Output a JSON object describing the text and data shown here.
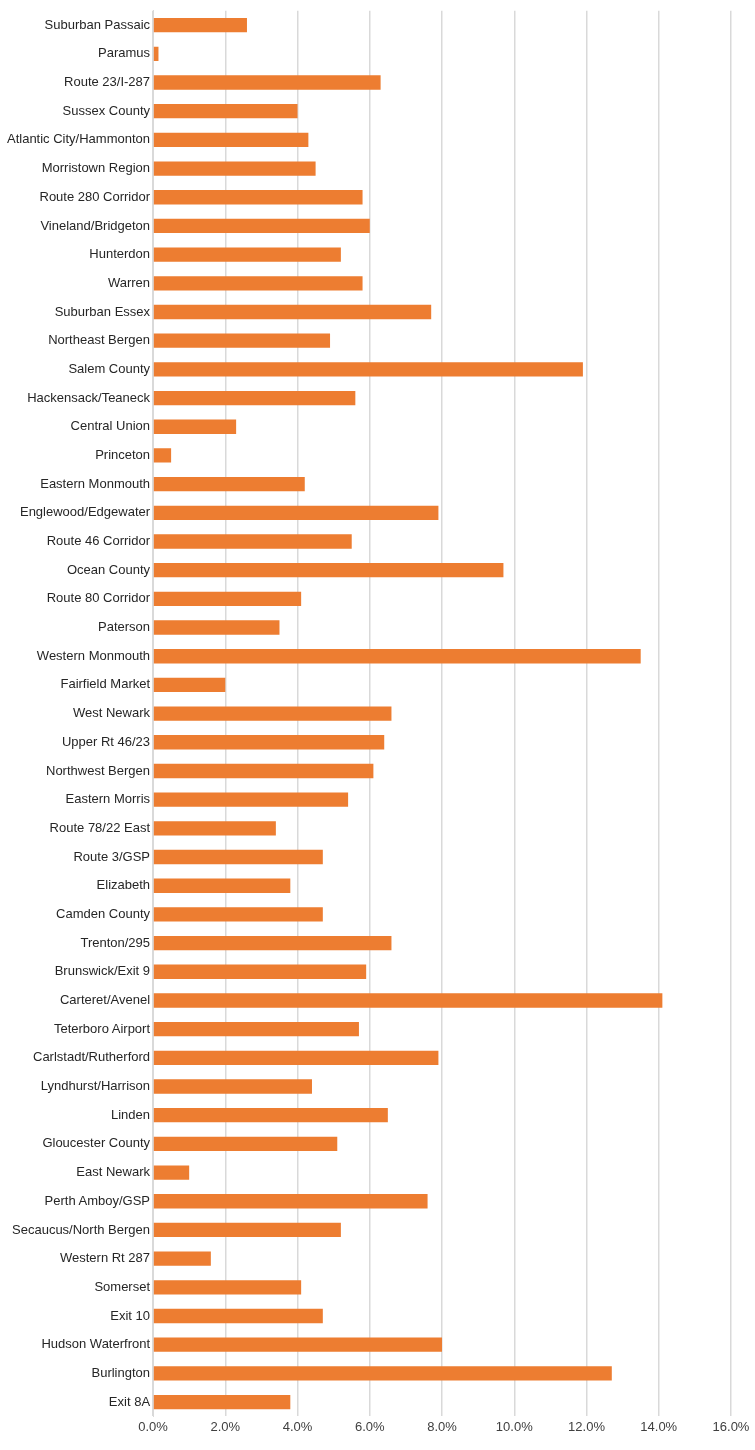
{
  "chart_data": {
    "type": "bar",
    "orientation": "horizontal",
    "categories": [
      "Suburban Passaic",
      "Paramus",
      "Route 23/I-287",
      "Sussex County",
      "Atlantic City/Hammonton",
      "Morristown Region",
      "Route 280 Corridor",
      "Vineland/Bridgeton",
      "Hunterdon",
      "Warren",
      "Suburban Essex",
      "Northeast Bergen",
      "Salem County",
      "Hackensack/Teaneck",
      "Central Union",
      "Princeton",
      "Eastern Monmouth",
      "Englewood/Edgewater",
      "Route 46 Corridor",
      "Ocean County",
      "Route 80 Corridor",
      "Paterson",
      "Western Monmouth",
      "Fairfield Market",
      "West Newark",
      "Upper Rt 46/23",
      "Northwest Bergen",
      "Eastern Morris",
      "Route 78/22 East",
      "Route 3/GSP",
      "Elizabeth",
      "Camden County",
      "Trenton/295",
      "Brunswick/Exit 9",
      "Carteret/Avenel",
      "Teterboro Airport",
      "Carlstadt/Rutherford",
      "Lyndhurst/Harrison",
      "Linden",
      "Gloucester County",
      "East Newark",
      "Perth Amboy/GSP",
      "Secaucus/North Bergen",
      "Western Rt 287",
      "Somerset",
      "Exit 10",
      "Hudson Waterfront",
      "Burlington",
      "Exit 8A"
    ],
    "values": [
      2.6,
      0.15,
      6.3,
      4.0,
      4.3,
      4.5,
      5.8,
      6.0,
      5.2,
      5.8,
      7.7,
      4.9,
      11.9,
      5.6,
      2.3,
      0.5,
      4.2,
      7.9,
      5.5,
      9.7,
      4.1,
      3.5,
      13.5,
      2.0,
      6.6,
      6.4,
      6.1,
      5.4,
      3.4,
      4.7,
      3.8,
      4.7,
      6.6,
      5.9,
      14.1,
      5.7,
      7.9,
      4.4,
      6.5,
      5.1,
      1.0,
      7.6,
      5.2,
      1.6,
      4.1,
      4.7,
      8.0,
      12.7,
      3.8
    ],
    "color": "#ed7d31",
    "xlim": [
      0,
      16
    ],
    "xticks": [
      {
        "value": 0,
        "label": "0.0%"
      },
      {
        "value": 2,
        "label": "2.0%"
      },
      {
        "value": 4,
        "label": "4.0%"
      },
      {
        "value": 6,
        "label": "6.0%"
      },
      {
        "value": 8,
        "label": "8.0%"
      },
      {
        "value": 10,
        "label": "10.0%"
      },
      {
        "value": 12,
        "label": "12.0%"
      },
      {
        "value": 14,
        "label": "14.0%"
      },
      {
        "value": 16,
        "label": "16.0%"
      }
    ],
    "grid": "x"
  }
}
